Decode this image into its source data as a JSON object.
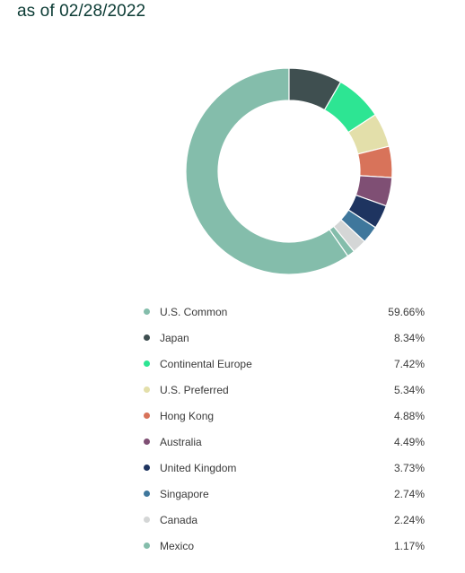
{
  "header": {
    "as_of": "as of 02/28/2022"
  },
  "chart_data": {
    "type": "pie",
    "title": "",
    "donut": true,
    "series": [
      {
        "name": "U.S. Common",
        "value": 59.66,
        "label": "59.66%",
        "color": "#84bdab"
      },
      {
        "name": "Japan",
        "value": 8.34,
        "label": "8.34%",
        "color": "#3f4f50"
      },
      {
        "name": "Continental Europe",
        "value": 7.42,
        "label": "7.42%",
        "color": "#2de593"
      },
      {
        "name": "U.S. Preferred",
        "value": 5.34,
        "label": "5.34%",
        "color": "#e3dfaa"
      },
      {
        "name": "Hong Kong",
        "value": 4.88,
        "label": "4.88%",
        "color": "#d8735a"
      },
      {
        "name": "Australia",
        "value": 4.49,
        "label": "4.49%",
        "color": "#7f4f74"
      },
      {
        "name": "United Kingdom",
        "value": 3.73,
        "label": "3.73%",
        "color": "#1e3460"
      },
      {
        "name": "Singapore",
        "value": 2.74,
        "label": "2.74%",
        "color": "#3f779c"
      },
      {
        "name": "Canada",
        "value": 2.24,
        "label": "2.24%",
        "color": "#d4d6d6"
      },
      {
        "name": "Mexico",
        "value": 1.17,
        "label": "1.17%",
        "color": "#84bdab"
      }
    ]
  }
}
